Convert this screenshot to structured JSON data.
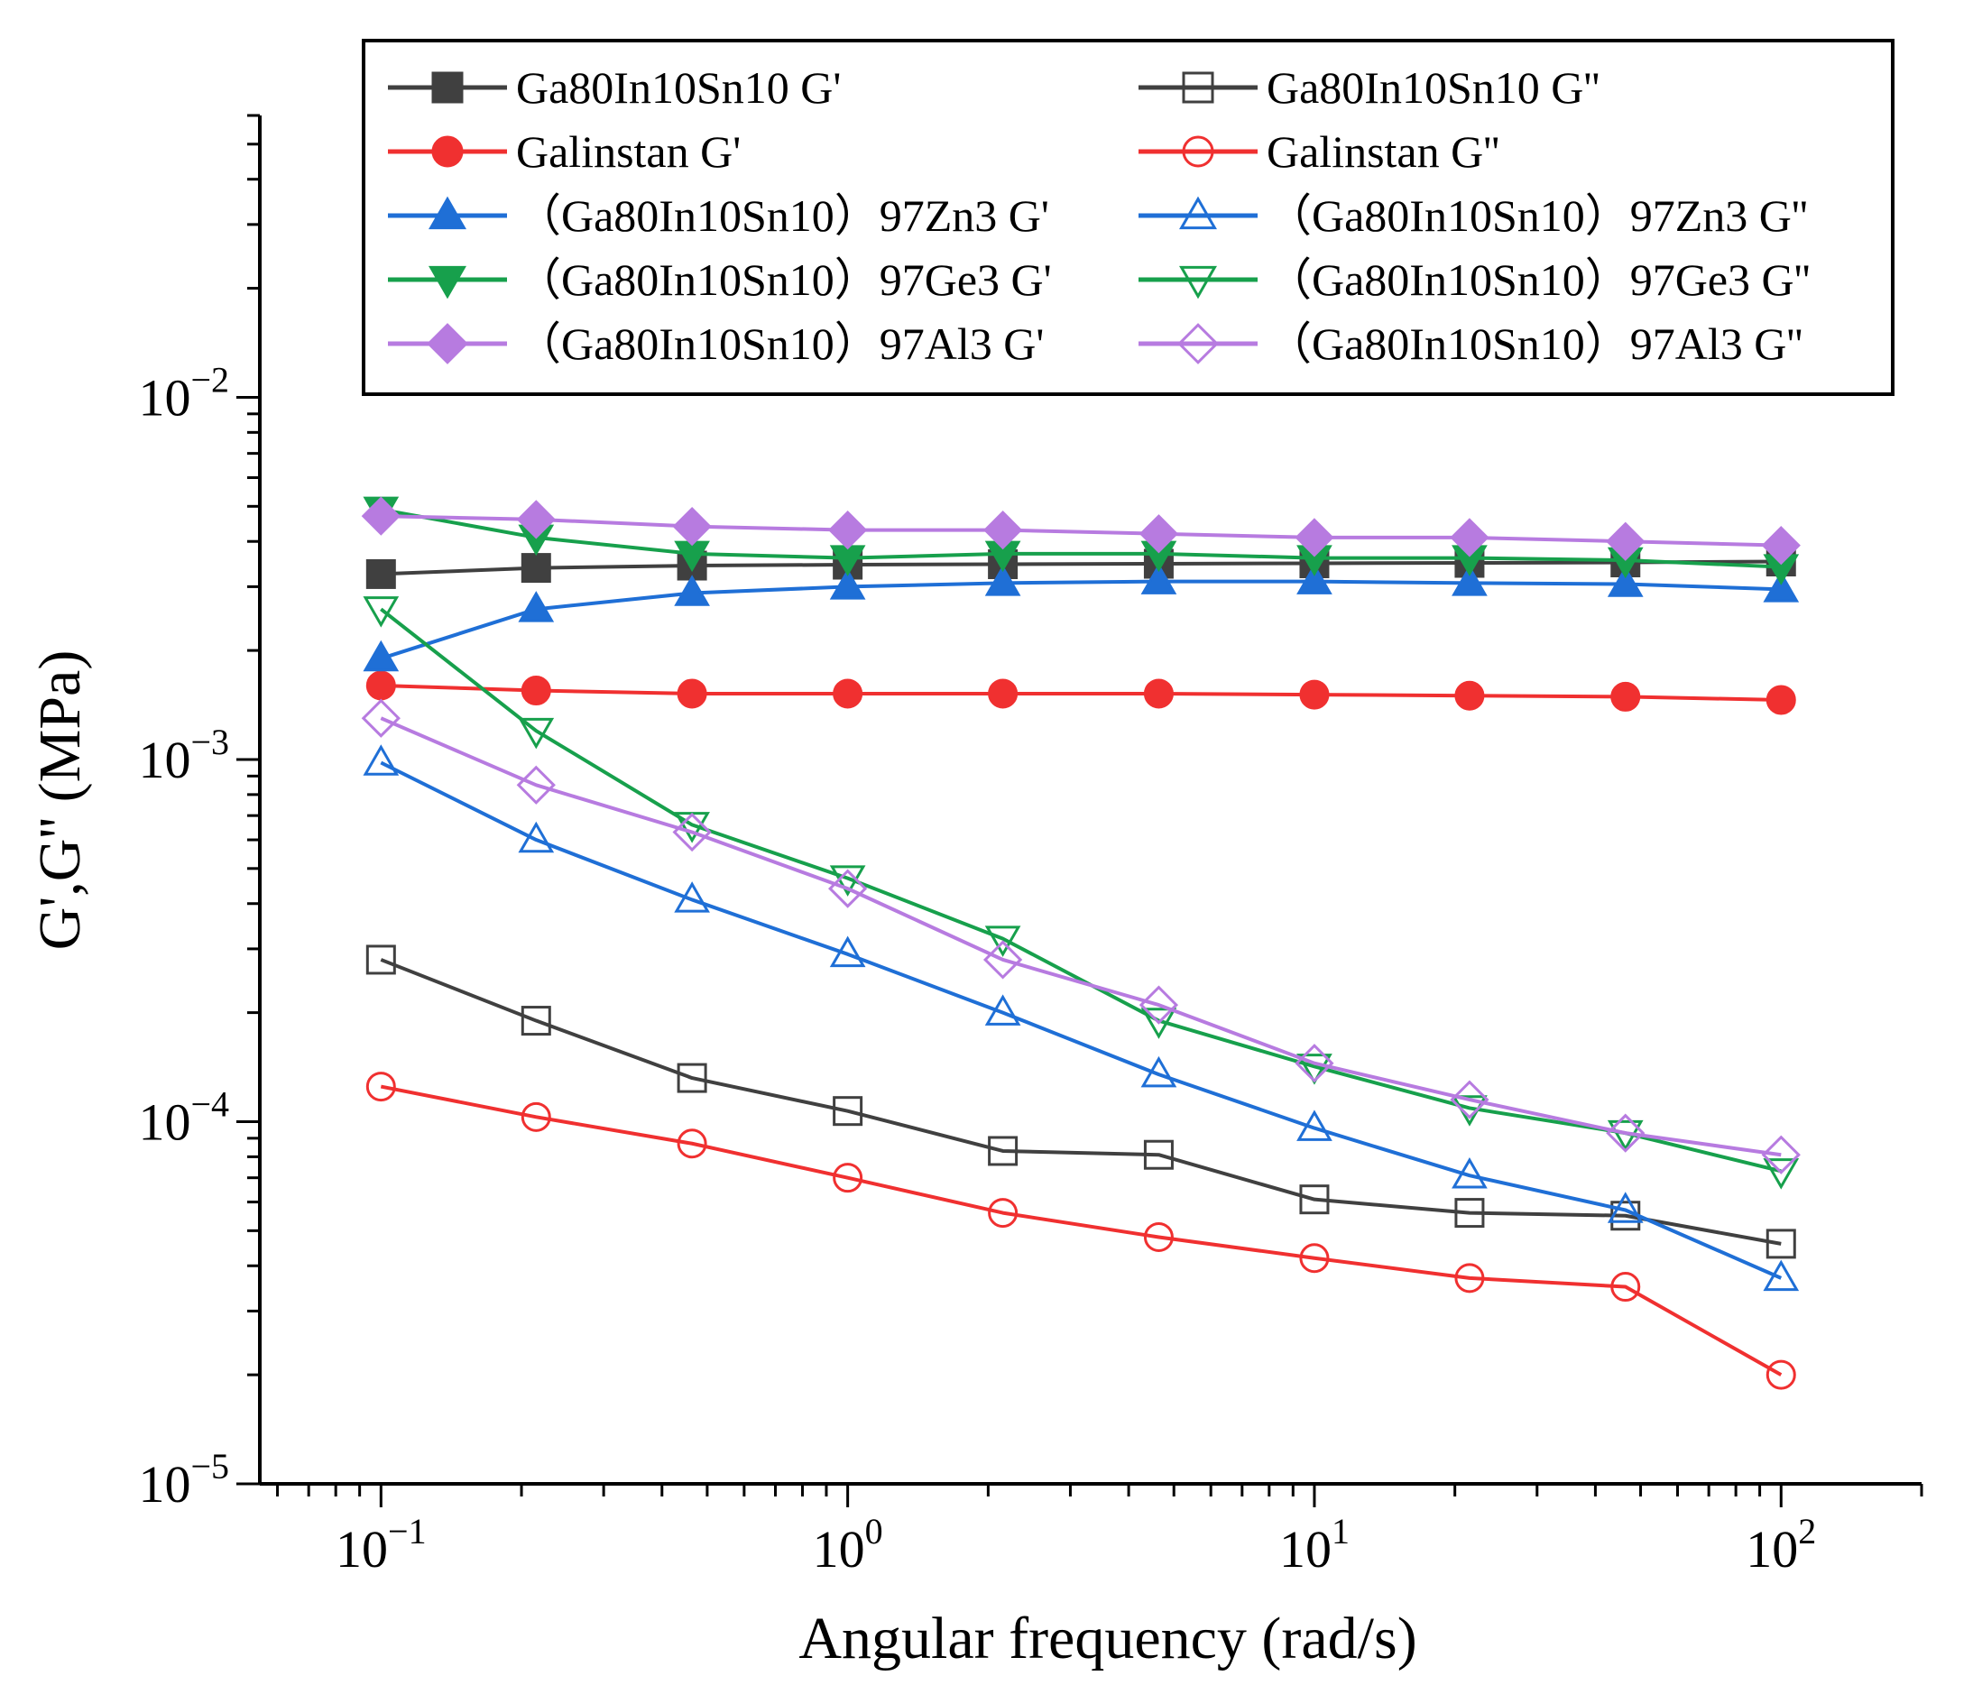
{
  "chart_data": {
    "type": "line",
    "title": "",
    "xlabel": "Angular frequency (rad/s)",
    "ylabel": "G',G'' (MPa)",
    "xscale": "log",
    "yscale": "log",
    "xlim": [
      0.055,
      200
    ],
    "ylim": [
      1e-05,
      0.06
    ],
    "x_ticks": [
      {
        "base": "10",
        "exp": "−1"
      },
      {
        "base": "10",
        "exp": "0"
      },
      {
        "base": "10",
        "exp": "1"
      },
      {
        "base": "10",
        "exp": "2"
      }
    ],
    "y_ticks": [
      {
        "base": "10",
        "exp": "−5"
      },
      {
        "base": "10",
        "exp": "−4"
      },
      {
        "base": "10",
        "exp": "−3"
      },
      {
        "base": "10",
        "exp": "−2"
      }
    ],
    "legend_position": "top",
    "x": [
      0.1,
      0.215,
      0.464,
      1,
      2.15,
      4.64,
      10,
      21.5,
      46.4,
      100
    ],
    "series": [
      {
        "name": "Ga80In10Sn10 G'",
        "color": "#404040",
        "marker": "square",
        "filled": true,
        "values": [
          0.00325,
          0.00338,
          0.00343,
          0.00345,
          0.00346,
          0.00347,
          0.00348,
          0.00349,
          0.0035,
          0.00352
        ]
      },
      {
        "name": "Ga80In10Sn10  G''",
        "color": "#404040",
        "marker": "square",
        "filled": false,
        "values": [
          0.00028,
          0.00019,
          0.000132,
          0.000107,
          8.3e-05,
          8.1e-05,
          6.1e-05,
          5.6e-05,
          5.5e-05,
          4.6e-05
        ]
      },
      {
        "name": "Galinstan G'",
        "color": "#f03030",
        "marker": "circle",
        "filled": true,
        "values": [
          0.0016,
          0.00155,
          0.00152,
          0.00152,
          0.00152,
          0.00152,
          0.00151,
          0.0015,
          0.00149,
          0.00146
        ]
      },
      {
        "name": "Galinstan  G''",
        "color": "#f03030",
        "marker": "circle",
        "filled": false,
        "values": [
          0.000125,
          0.000103,
          8.7e-05,
          7e-05,
          5.6e-05,
          4.8e-05,
          4.2e-05,
          3.7e-05,
          3.5e-05,
          2e-05
        ]
      },
      {
        "name": "（Ga80In10Sn10）97Zn3 G'",
        "color": "#1f6fd6",
        "marker": "triangle-up",
        "filled": true,
        "values": [
          0.0019,
          0.0026,
          0.00288,
          0.003,
          0.00307,
          0.0031,
          0.0031,
          0.00307,
          0.00305,
          0.00295
        ]
      },
      {
        "name": "（Ga80In10Sn10）97Zn3 G''",
        "color": "#1f6fd6",
        "marker": "triangle-up",
        "filled": false,
        "values": [
          0.00098,
          0.0006,
          0.00041,
          0.00029,
          0.0002,
          0.000135,
          9.6e-05,
          7.1e-05,
          5.7e-05,
          3.7e-05
        ]
      },
      {
        "name": "（Ga80In10Sn10）97Ge3 G'",
        "color": "#17a04c",
        "marker": "triangle-down",
        "filled": true,
        "values": [
          0.0049,
          0.0041,
          0.0037,
          0.0036,
          0.0037,
          0.0037,
          0.0036,
          0.0036,
          0.00355,
          0.0034
        ]
      },
      {
        "name": "（Ga80In10Sn10）97Ge3 G''",
        "color": "#17a04c",
        "marker": "triangle-down",
        "filled": false,
        "values": [
          0.0026,
          0.0012,
          0.00066,
          0.00047,
          0.00032,
          0.00019,
          0.000142,
          0.000109,
          9.3e-05,
          7.3e-05
        ]
      },
      {
        "name": "（Ga80In10Sn10）97Al3 G'",
        "color": "#b77be0",
        "marker": "diamond",
        "filled": true,
        "values": [
          0.0047,
          0.0046,
          0.0044,
          0.0043,
          0.0043,
          0.0042,
          0.0041,
          0.0041,
          0.004,
          0.0039
        ]
      },
      {
        "name": "（Ga80In10Sn10）97Al3 G''",
        "color": "#b77be0",
        "marker": "diamond",
        "filled": false,
        "values": [
          0.0013,
          0.00085,
          0.00063,
          0.00044,
          0.00028,
          0.00021,
          0.000145,
          0.000115,
          9.3e-05,
          8.1e-05
        ]
      }
    ]
  }
}
